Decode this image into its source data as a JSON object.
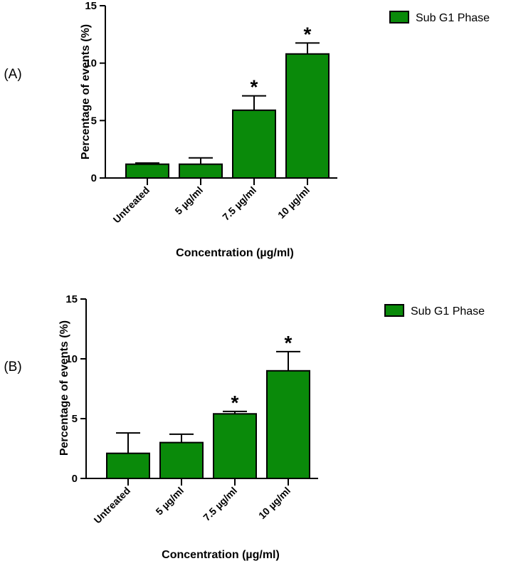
{
  "chart_data": [
    {
      "type": "bar",
      "panel_label": "(A)",
      "categories": [
        "Untreated",
        "5 µg/ml",
        "7.5 µg/ml",
        "10 µg/ml"
      ],
      "series": [
        {
          "name": "Sub G1 Phase",
          "values": [
            1.2,
            1.2,
            5.9,
            10.8
          ],
          "errors": [
            0.1,
            0.55,
            1.25,
            0.95
          ]
        }
      ],
      "significance": [
        "",
        "",
        "*",
        "*"
      ],
      "xlabel": "Concentration (µg/ml)",
      "ylabel": "Percentage of events (%)",
      "ylim": [
        0,
        15
      ],
      "yticks": [
        0,
        5,
        10,
        15
      ],
      "color": "#0a8a0a",
      "legend_position": "top-right"
    },
    {
      "type": "bar",
      "panel_label": "(B)",
      "categories": [
        "Untreated",
        "5 µg/ml",
        "7.5 µg/ml",
        "10 µg/ml"
      ],
      "series": [
        {
          "name": "Sub G1 Phase",
          "values": [
            2.1,
            3.0,
            5.4,
            9.0
          ],
          "errors": [
            1.7,
            0.7,
            0.2,
            1.6
          ]
        }
      ],
      "significance": [
        "",
        "",
        "*",
        "*"
      ],
      "xlabel": "Concentration (µg/ml)",
      "ylabel": "Percentage of events (%)",
      "ylim": [
        0,
        15
      ],
      "yticks": [
        0,
        5,
        10,
        15
      ],
      "color": "#0a8a0a",
      "legend_position": "top-right"
    }
  ]
}
